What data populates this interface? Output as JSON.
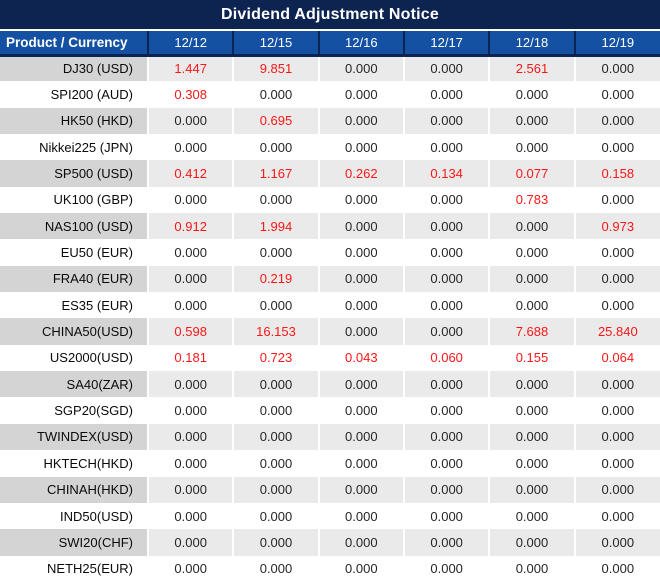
{
  "title": "Dividend Adjustment Notice",
  "chart_data": {
    "type": "table",
    "title": "Dividend Adjustment Notice",
    "columns": [
      "Product / Currency",
      "12/12",
      "12/15",
      "12/16",
      "12/17",
      "12/18",
      "12/19"
    ],
    "rows": [
      {
        "product": "DJ30 (USD)",
        "values": [
          "1.447",
          "9.851",
          "0.000",
          "0.000",
          "2.561",
          "0.000"
        ]
      },
      {
        "product": "SPI200 (AUD)",
        "values": [
          "0.308",
          "0.000",
          "0.000",
          "0.000",
          "0.000",
          "0.000"
        ]
      },
      {
        "product": "HK50 (HKD)",
        "values": [
          "0.000",
          "0.695",
          "0.000",
          "0.000",
          "0.000",
          "0.000"
        ]
      },
      {
        "product": "Nikkei225 (JPN)",
        "values": [
          "0.000",
          "0.000",
          "0.000",
          "0.000",
          "0.000",
          "0.000"
        ]
      },
      {
        "product": "SP500 (USD)",
        "values": [
          "0.412",
          "1.167",
          "0.262",
          "0.134",
          "0.077",
          "0.158"
        ]
      },
      {
        "product": "UK100 (GBP)",
        "values": [
          "0.000",
          "0.000",
          "0.000",
          "0.000",
          "0.783",
          "0.000"
        ]
      },
      {
        "product": "NAS100 (USD)",
        "values": [
          "0.912",
          "1.994",
          "0.000",
          "0.000",
          "0.000",
          "0.973"
        ]
      },
      {
        "product": "EU50 (EUR)",
        "values": [
          "0.000",
          "0.000",
          "0.000",
          "0.000",
          "0.000",
          "0.000"
        ]
      },
      {
        "product": "FRA40 (EUR)",
        "values": [
          "0.000",
          "0.219",
          "0.000",
          "0.000",
          "0.000",
          "0.000"
        ]
      },
      {
        "product": "ES35 (EUR)",
        "values": [
          "0.000",
          "0.000",
          "0.000",
          "0.000",
          "0.000",
          "0.000"
        ]
      },
      {
        "product": "CHINA50(USD)",
        "values": [
          "0.598",
          "16.153",
          "0.000",
          "0.000",
          "7.688",
          "25.840"
        ]
      },
      {
        "product": "US2000(USD)",
        "values": [
          "0.181",
          "0.723",
          "0.043",
          "0.060",
          "0.155",
          "0.064"
        ]
      },
      {
        "product": "SA40(ZAR)",
        "values": [
          "0.000",
          "0.000",
          "0.000",
          "0.000",
          "0.000",
          "0.000"
        ]
      },
      {
        "product": "SGP20(SGD)",
        "values": [
          "0.000",
          "0.000",
          "0.000",
          "0.000",
          "0.000",
          "0.000"
        ]
      },
      {
        "product": "TWINDEX(USD)",
        "values": [
          "0.000",
          "0.000",
          "0.000",
          "0.000",
          "0.000",
          "0.000"
        ]
      },
      {
        "product": "HKTECH(HKD)",
        "values": [
          "0.000",
          "0.000",
          "0.000",
          "0.000",
          "0.000",
          "0.000"
        ]
      },
      {
        "product": "CHINAH(HKD)",
        "values": [
          "0.000",
          "0.000",
          "0.000",
          "0.000",
          "0.000",
          "0.000"
        ]
      },
      {
        "product": "IND50(USD)",
        "values": [
          "0.000",
          "0.000",
          "0.000",
          "0.000",
          "0.000",
          "0.000"
        ]
      },
      {
        "product": "SWI20(CHF)",
        "values": [
          "0.000",
          "0.000",
          "0.000",
          "0.000",
          "0.000",
          "0.000"
        ]
      },
      {
        "product": "NETH25(EUR)",
        "values": [
          "0.000",
          "0.000",
          "0.000",
          "0.000",
          "0.000",
          "0.000"
        ]
      }
    ],
    "highlight_rule": "non-zero dividend values are rendered in red",
    "layout": {
      "striped_rows": true,
      "first_stripe": "gray"
    }
  },
  "colors": {
    "title_bar_bg": "#0d2350",
    "header_bg": "#1551a2",
    "stripe_product_bg": "#d4d4d4",
    "stripe_value_bg": "#eaeaea",
    "highlight_red": "#fa1717",
    "value_text": "#262626",
    "header_text": "#ffffff"
  }
}
